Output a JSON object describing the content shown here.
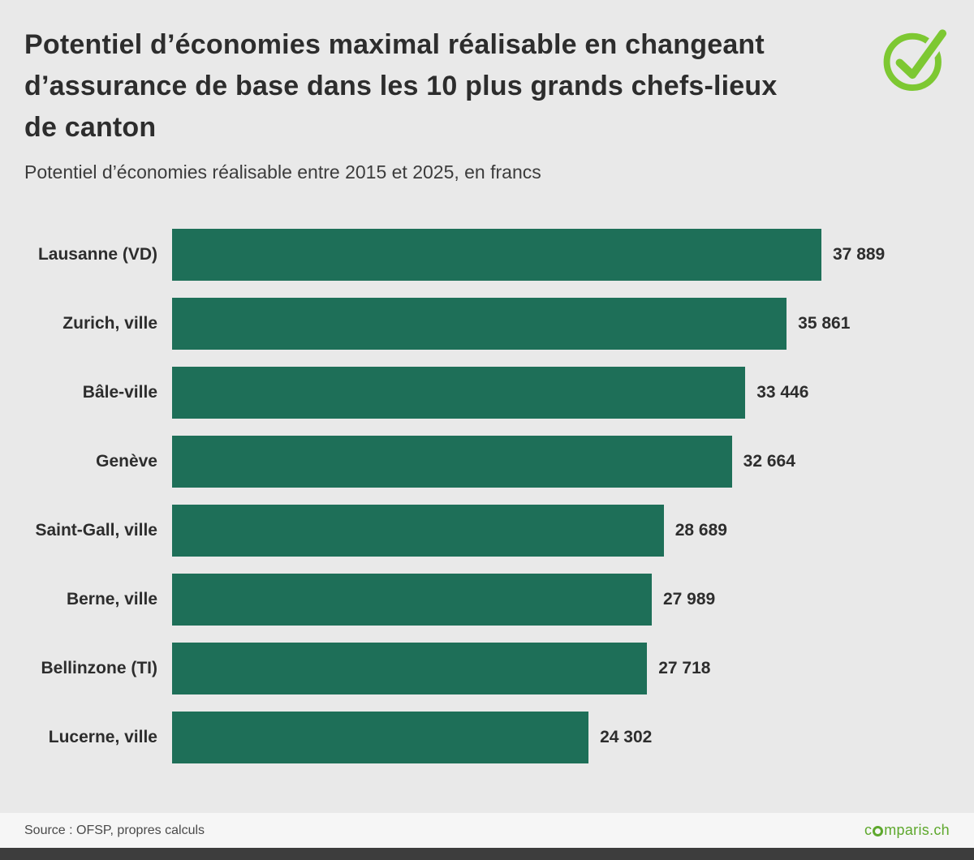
{
  "header": {
    "title": "Potentiel d’économies maximal réalisable en changeant d’assurance de base dans les 10 plus grands chefs-lieux de canton",
    "subtitle": "Potentiel d’économies réalisable entre 2015 et 2025, en francs"
  },
  "footer": {
    "source": "Source : OFSP, propres calculs",
    "brand": {
      "text": "comparis.ch",
      "prefix": "c",
      "suffix": "mparis.ch"
    }
  },
  "colors": {
    "bar": "#1e6f58",
    "logo_check_green": "#7dc832",
    "brand_green": "#5ea82d",
    "background": "#e9e9e9"
  },
  "icons": {
    "logo": "checkmark-circle-icon",
    "brand_o": "ring-icon"
  },
  "chart_data": {
    "type": "bar",
    "orientation": "horizontal",
    "title": "Potentiel d’économies maximal réalisable en changeant d’assurance de base dans les 10 plus grands chefs-lieux de canton",
    "subtitle": "Potentiel d’économies réalisable entre 2015 et 2025, en francs",
    "categories": [
      "Lausanne (VD)",
      "Zurich, ville",
      "Bâle-ville",
      "Genève",
      "Saint-Gall, ville",
      "Berne, ville",
      "Bellinzone (TI)",
      "Lucerne, ville"
    ],
    "values": [
      37889,
      35861,
      33446,
      32664,
      28689,
      27989,
      27718,
      24302
    ],
    "value_labels": [
      "37 889",
      "35 861",
      "33 446",
      "32 664",
      "28 689",
      "27 989",
      "27 718",
      "24 302"
    ],
    "xlabel": "",
    "ylabel": "",
    "xlim": [
      0,
      37889
    ],
    "grid": false,
    "legend": false,
    "bar_color": "#1e6f58"
  }
}
